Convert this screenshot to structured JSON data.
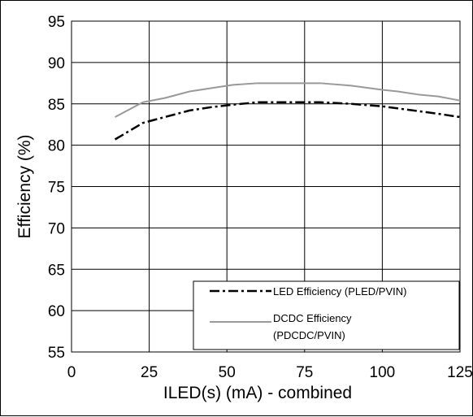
{
  "chart_data": {
    "type": "line",
    "title": "",
    "xlabel": "ILED(s) (mA) - combined",
    "ylabel": "Efficiency (%)",
    "xlim": [
      0,
      125
    ],
    "ylim": [
      55,
      95
    ],
    "xticks": [
      "0",
      "25",
      "50",
      "75",
      "100",
      "125"
    ],
    "yticks": [
      "55",
      "60",
      "65",
      "70",
      "75",
      "80",
      "85",
      "90",
      "95"
    ],
    "grid": true,
    "legend_position": "bottom-right",
    "series": [
      {
        "name": "LED Efficiency (PLED/PVIN)",
        "style": "dash-dot",
        "color": "#000000",
        "x": [
          14,
          23,
          30,
          38,
          45,
          52,
          60,
          70,
          80,
          90,
          100,
          110,
          118,
          125
        ],
        "y": [
          80.7,
          82.7,
          83.4,
          84.2,
          84.6,
          84.9,
          85.2,
          85.2,
          85.2,
          85.0,
          84.7,
          84.2,
          83.8,
          83.4
        ]
      },
      {
        "name": "DCDC Efficiency (PDCDC/PVIN)",
        "name_lines": [
          "DCDC Efficiency",
          "(PDCDC/PVIN)"
        ],
        "style": "solid",
        "color": "#999999",
        "x": [
          14,
          23,
          30,
          38,
          45,
          52,
          60,
          70,
          80,
          90,
          100,
          105,
          112,
          118,
          125
        ],
        "y": [
          83.4,
          85.2,
          85.7,
          86.5,
          86.9,
          87.3,
          87.5,
          87.5,
          87.5,
          87.2,
          86.7,
          86.5,
          86.1,
          85.9,
          85.4
        ]
      }
    ]
  }
}
